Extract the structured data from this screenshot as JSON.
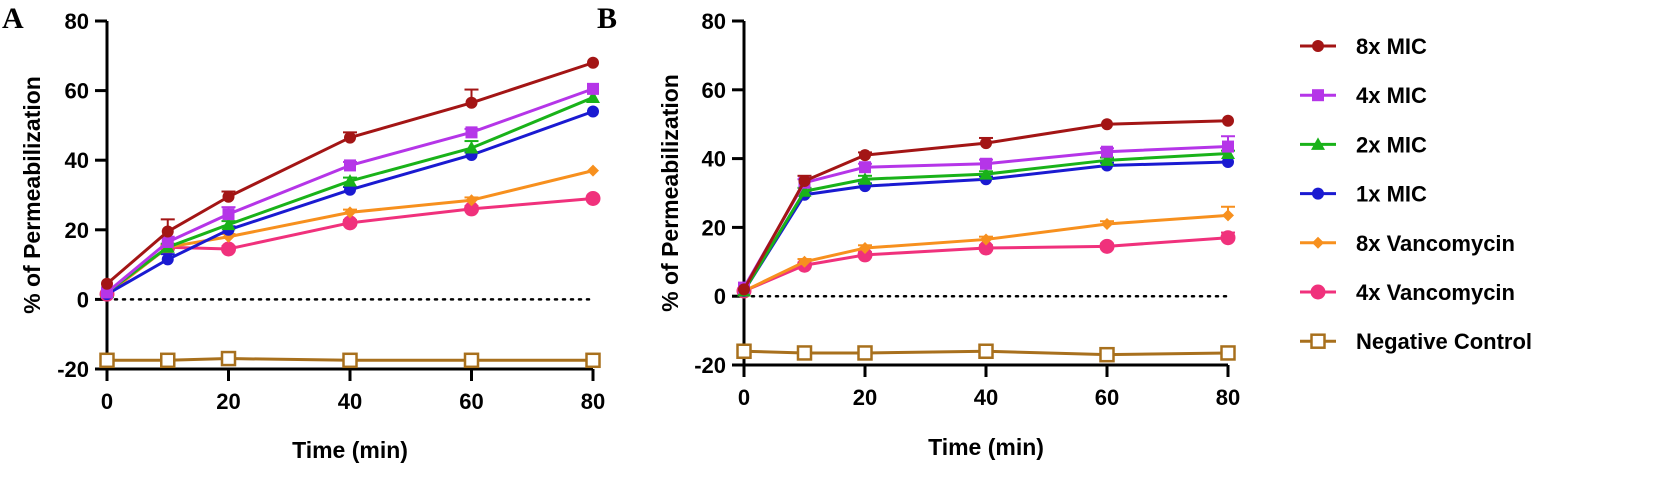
{
  "chart_data": [
    {
      "type": "line",
      "panel_label": "A",
      "xlabel": "Time (min)",
      "ylabel": "% of Permeabilization",
      "xlim": [
        0,
        80
      ],
      "ylim": [
        -20,
        80
      ],
      "xticks": [
        "0",
        "20",
        "40",
        "60",
        "80"
      ],
      "yticks": [
        "-20",
        "0",
        "20",
        "40",
        "60",
        "80"
      ],
      "reference_line": {
        "y": 0,
        "style": "dotted"
      },
      "x": [
        0,
        10,
        20,
        40,
        60,
        80
      ],
      "series": [
        {
          "name": "8x MIC",
          "color": "#a31515",
          "marker": "circle",
          "values": [
            4.5,
            19.5,
            29.5,
            46.5,
            56.5,
            68
          ],
          "err": [
            0.5,
            3.5,
            1.5,
            1.5,
            3.8,
            0.5
          ]
        },
        {
          "name": "4x MIC",
          "color": "#b535e8",
          "marker": "square",
          "values": [
            2,
            16.5,
            24.5,
            38.5,
            48,
            60.5
          ],
          "err": [
            0.3,
            1.5,
            2,
            1,
            1,
            0.5
          ]
        },
        {
          "name": "2x MIC",
          "color": "#19b219",
          "marker": "triangle",
          "values": [
            2,
            15,
            21.5,
            34,
            43.5,
            58
          ],
          "err": [
            0.3,
            1,
            1,
            1,
            2,
            0.5
          ]
        },
        {
          "name": "1x MIC",
          "color": "#1a1ad1",
          "marker": "circle",
          "values": [
            1.5,
            11.5,
            20,
            31.5,
            41.5,
            54
          ],
          "err": [
            0.3,
            1.5,
            1,
            0.8,
            0.8,
            0.5
          ]
        },
        {
          "name": "8x Vancomycin",
          "color": "#f7901e",
          "marker": "diamond",
          "values": [
            1.5,
            15,
            18,
            25,
            28.5,
            37
          ],
          "err": [
            0.3,
            0.8,
            0.8,
            0.8,
            0.8,
            0.5
          ]
        },
        {
          "name": "4x Vancomycin",
          "color": "#f0317c",
          "marker": "circle-large",
          "values": [
            1.5,
            15,
            14.5,
            22,
            26,
            29
          ],
          "err": [
            0.3,
            0.8,
            0.8,
            0.8,
            0.8,
            0.5
          ]
        },
        {
          "name": "Negative Control",
          "color": "#a8701d",
          "marker": "square-open",
          "values": [
            -17.5,
            -17.5,
            -17,
            -17.5,
            -17.5,
            -17.5
          ],
          "err": [
            0,
            0,
            0,
            0,
            0,
            0
          ]
        }
      ]
    },
    {
      "type": "line",
      "panel_label": "B",
      "xlabel": "Time (min)",
      "ylabel": "% of Permeabilization",
      "xlim": [
        0,
        80
      ],
      "ylim": [
        -20,
        80
      ],
      "xticks": [
        "0",
        "20",
        "40",
        "60",
        "80"
      ],
      "yticks": [
        "-20",
        "0",
        "20",
        "40",
        "60",
        "80"
      ],
      "reference_line": {
        "y": 0,
        "style": "dotted"
      },
      "x": [
        0,
        10,
        20,
        40,
        60,
        80
      ],
      "series": [
        {
          "name": "8x MIC",
          "color": "#a31515",
          "marker": "circle",
          "values": [
            2,
            33.5,
            41,
            44.5,
            50,
            51
          ],
          "err": [
            0.3,
            1.5,
            0.8,
            1.5,
            0.5,
            0.5
          ]
        },
        {
          "name": "4x MIC",
          "color": "#b535e8",
          "marker": "square",
          "values": [
            2.5,
            33,
            37.5,
            38.5,
            42,
            43.5
          ],
          "err": [
            0.3,
            1,
            1,
            1.2,
            1,
            3
          ]
        },
        {
          "name": "2x MIC",
          "color": "#19b219",
          "marker": "triangle",
          "values": [
            1.5,
            30.5,
            34,
            35.5,
            39.5,
            41.5
          ],
          "err": [
            0.3,
            1,
            1,
            0.8,
            0.8,
            0.8
          ]
        },
        {
          "name": "1x MIC",
          "color": "#1a1ad1",
          "marker": "circle",
          "values": [
            1.5,
            29.5,
            32,
            34,
            38,
            39
          ],
          "err": [
            0.3,
            1,
            0.8,
            0.8,
            0.8,
            0.5
          ]
        },
        {
          "name": "8x Vancomycin",
          "color": "#f7901e",
          "marker": "diamond",
          "values": [
            1.5,
            10,
            14,
            16.5,
            21,
            23.5
          ],
          "err": [
            0.3,
            0.8,
            0.8,
            0.8,
            0.8,
            2.5
          ]
        },
        {
          "name": "4x Vancomycin",
          "color": "#f0317c",
          "marker": "circle-large",
          "values": [
            1.5,
            9,
            12,
            14,
            14.5,
            17
          ],
          "err": [
            0.3,
            0.8,
            0.8,
            0.8,
            0.8,
            1.5
          ]
        },
        {
          "name": "Negative Control",
          "color": "#a8701d",
          "marker": "square-open",
          "values": [
            -16,
            -16.5,
            -16.5,
            -16,
            -17,
            -16.5
          ],
          "err": [
            0,
            0,
            0,
            0,
            0,
            0
          ]
        }
      ]
    }
  ],
  "legend": {
    "placement": "right",
    "items": [
      {
        "label": "8x MIC",
        "color": "#a31515",
        "marker": "circle"
      },
      {
        "label": "4x MIC",
        "color": "#b535e8",
        "marker": "square"
      },
      {
        "label": "2x MIC",
        "color": "#19b219",
        "marker": "triangle"
      },
      {
        "label": "1x MIC",
        "color": "#1a1ad1",
        "marker": "circle"
      },
      {
        "label": "8x Vancomycin",
        "color": "#f7901e",
        "marker": "diamond"
      },
      {
        "label": "4x Vancomycin",
        "color": "#f0317c",
        "marker": "circle-large"
      },
      {
        "label": "Negative Control",
        "color": "#a8701d",
        "marker": "square-open"
      }
    ]
  }
}
